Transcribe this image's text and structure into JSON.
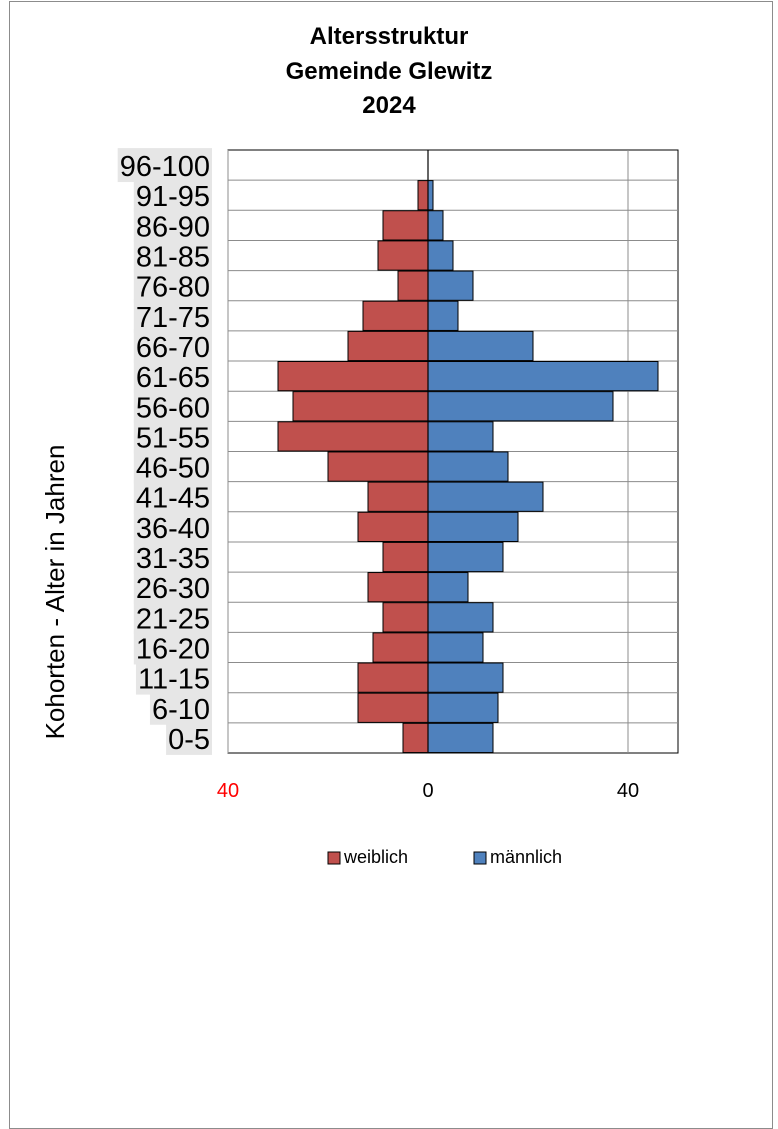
{
  "chart_data": {
    "type": "bar",
    "orientation": "horizontal",
    "title": [
      "Altersstruktur",
      "Gemeinde Glewitz",
      "2024"
    ],
    "ylabel": "Kohorten - Alter in Jahren",
    "xlabel": "",
    "categories": [
      "96-100",
      "91-95",
      "86-90",
      "81-85",
      "76-80",
      "71-75",
      "66-70",
      "61-65",
      "56-60",
      "51-55",
      "46-50",
      "41-45",
      "36-40",
      "31-35",
      "26-30",
      "21-25",
      "16-20",
      "11-15",
      "6-10",
      "0-5"
    ],
    "series": [
      {
        "name": "weiblich",
        "color": "#c0504d",
        "direction": "left",
        "values": [
          0,
          2,
          9,
          10,
          6,
          13,
          16,
          30,
          27,
          30,
          20,
          12,
          14,
          9,
          12,
          9,
          11,
          14,
          14,
          5
        ]
      },
      {
        "name": "männlich",
        "color": "#4f81bd",
        "direction": "right",
        "values": [
          0,
          1,
          3,
          5,
          9,
          6,
          21,
          46,
          37,
          13,
          16,
          23,
          18,
          15,
          8,
          13,
          11,
          15,
          14,
          13
        ]
      }
    ],
    "xlim": [
      -40,
      50
    ],
    "xticks": [
      {
        "value": -40,
        "label": "40",
        "color": "#ff0000"
      },
      {
        "value": 0,
        "label": "0",
        "color": "#000000"
      },
      {
        "value": 40,
        "label": "40",
        "color": "#000000"
      }
    ],
    "grid": "vertical and horizontal",
    "legend_position": "bottom"
  }
}
